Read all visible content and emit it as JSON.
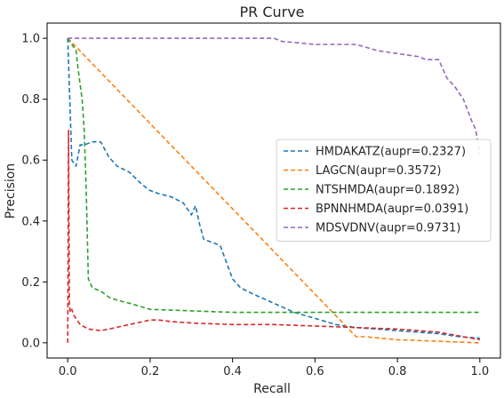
{
  "chart_data": {
    "type": "line",
    "title": "PR Curve",
    "xlabel": "Recall",
    "ylabel": "Precision",
    "xlim": [
      -0.05,
      1.05
    ],
    "ylim": [
      -0.05,
      1.05
    ],
    "xticks": [
      {
        "value": 0.0,
        "label": "0.0"
      },
      {
        "value": 0.2,
        "label": "0.2"
      },
      {
        "value": 0.4,
        "label": "0.4"
      },
      {
        "value": 0.6,
        "label": "0.6"
      },
      {
        "value": 0.8,
        "label": "0.8"
      },
      {
        "value": 1.0,
        "label": "1.0"
      }
    ],
    "yticks": [
      {
        "value": 0.0,
        "label": "0.0"
      },
      {
        "value": 0.2,
        "label": "0.2"
      },
      {
        "value": 0.4,
        "label": "0.4"
      },
      {
        "value": 0.6,
        "label": "0.6"
      },
      {
        "value": 0.8,
        "label": "0.8"
      },
      {
        "value": 1.0,
        "label": "1.0"
      }
    ],
    "grid": false,
    "legend_position": "center-right",
    "line_style": "dashed",
    "series": [
      {
        "name": "HMDAKATZ(aupr=0.2327)",
        "color": "#1f77b4",
        "x": [
          0.0,
          0.005,
          0.01,
          0.02,
          0.03,
          0.04,
          0.06,
          0.08,
          0.1,
          0.12,
          0.15,
          0.18,
          0.2,
          0.22,
          0.25,
          0.28,
          0.3,
          0.31,
          0.32,
          0.33,
          0.35,
          0.37,
          0.4,
          0.42,
          0.45,
          0.5,
          0.55,
          0.6,
          0.65,
          0.7,
          0.75,
          0.8,
          0.85,
          0.9,
          0.95,
          1.0
        ],
        "y": [
          1.0,
          0.8,
          0.6,
          0.58,
          0.65,
          0.65,
          0.66,
          0.66,
          0.61,
          0.58,
          0.56,
          0.52,
          0.5,
          0.49,
          0.48,
          0.46,
          0.42,
          0.45,
          0.39,
          0.34,
          0.33,
          0.32,
          0.21,
          0.18,
          0.16,
          0.13,
          0.1,
          0.08,
          0.06,
          0.05,
          0.045,
          0.04,
          0.035,
          0.03,
          0.02,
          0.015
        ]
      },
      {
        "name": "LAGCN(aupr=0.3572)",
        "color": "#ff7f0e",
        "x": [
          0.0,
          0.7,
          0.72,
          0.8,
          0.9,
          1.0
        ],
        "y": [
          1.0,
          0.02,
          0.02,
          0.01,
          0.005,
          0.0
        ]
      },
      {
        "name": "NTSHMDA(aupr=0.1892)",
        "color": "#2ca02c",
        "x": [
          0.0,
          0.01,
          0.02,
          0.025,
          0.03,
          0.035,
          0.04,
          0.045,
          0.05,
          0.06,
          0.08,
          0.1,
          0.12,
          0.15,
          0.2,
          0.3,
          0.4,
          0.5,
          0.7,
          1.0
        ],
        "y": [
          1.0,
          0.98,
          0.96,
          0.9,
          0.85,
          0.8,
          0.7,
          0.5,
          0.21,
          0.18,
          0.17,
          0.15,
          0.14,
          0.13,
          0.11,
          0.105,
          0.1,
          0.1,
          0.1,
          0.1
        ]
      },
      {
        "name": "BPNNHMDA(aupr=0.0391)",
        "color": "#d62728",
        "x": [
          0.0,
          0.002,
          0.004,
          0.006,
          0.01,
          0.015,
          0.02,
          0.03,
          0.05,
          0.08,
          0.1,
          0.15,
          0.2,
          0.22,
          0.25,
          0.3,
          0.4,
          0.5,
          0.6,
          0.7,
          0.8,
          0.9,
          1.0
        ],
        "y": [
          0.0,
          0.7,
          0.13,
          0.1,
          0.11,
          0.09,
          0.08,
          0.06,
          0.045,
          0.04,
          0.045,
          0.06,
          0.075,
          0.075,
          0.07,
          0.065,
          0.06,
          0.06,
          0.055,
          0.05,
          0.045,
          0.035,
          0.01
        ]
      },
      {
        "name": "MDSVDNV(aupr=0.9731)",
        "color": "#9467bd",
        "x": [
          0.0,
          0.2,
          0.4,
          0.5,
          0.52,
          0.6,
          0.7,
          0.75,
          0.8,
          0.85,
          0.87,
          0.9,
          0.92,
          0.94,
          0.96,
          0.98,
          0.99,
          1.0
        ],
        "y": [
          1.0,
          1.0,
          1.0,
          1.0,
          0.99,
          0.98,
          0.98,
          0.96,
          0.95,
          0.94,
          0.93,
          0.93,
          0.87,
          0.84,
          0.8,
          0.73,
          0.7,
          0.62
        ]
      }
    ]
  }
}
